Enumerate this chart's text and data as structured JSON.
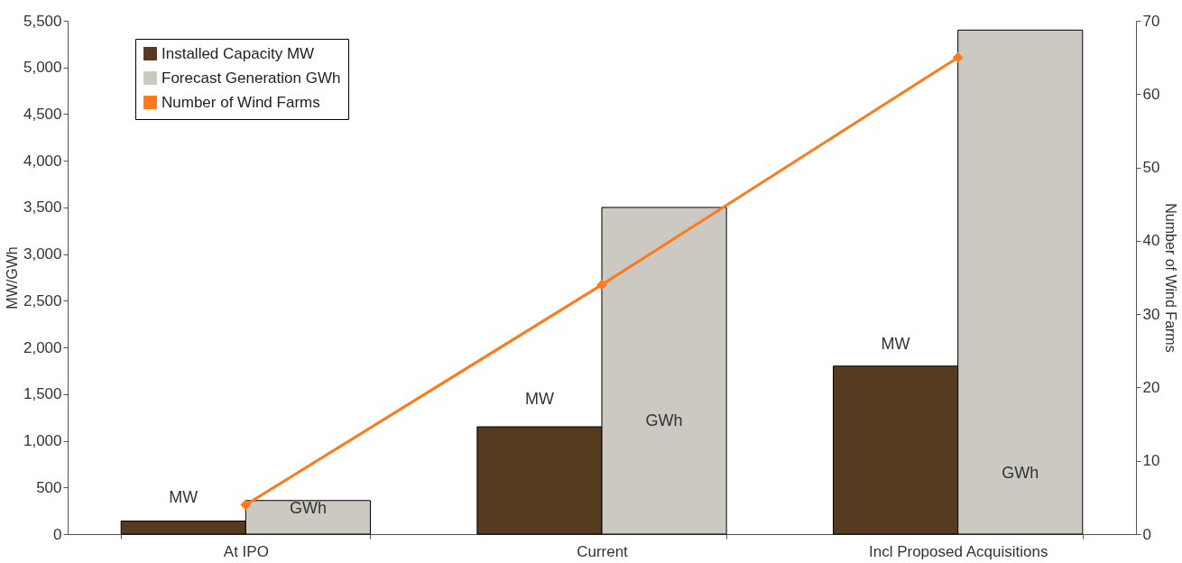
{
  "chart_data": {
    "type": "bar",
    "categories": [
      "At IPO",
      "Current",
      "Incl Proposed Acquisitions"
    ],
    "series": [
      {
        "name": "Installed Capacity MW",
        "color": "#553b1f",
        "values": [
          140,
          1150,
          1800
        ]
      },
      {
        "name": "Forecast Generation GWh",
        "color": "#ccc8c2",
        "values": [
          360,
          3500,
          5400
        ]
      },
      {
        "name": "Number of Wind Farms",
        "type": "line",
        "axis": "y2",
        "color": "#ff7a1a",
        "marker": "diamond",
        "values": [
          4,
          34,
          65
        ]
      }
    ],
    "ylabel": "MW/GWh",
    "y2label": "Number of Wind Farms",
    "ylim": [
      0,
      5500
    ],
    "yticks": [
      {
        "value": 0,
        "label": "0"
      },
      {
        "value": 500,
        "label": "500"
      },
      {
        "value": 1000,
        "label": "1,000"
      },
      {
        "value": 1500,
        "label": "1,500"
      },
      {
        "value": 2000,
        "label": "2,000"
      },
      {
        "value": 2500,
        "label": "2,500"
      },
      {
        "value": 3000,
        "label": "3,000"
      },
      {
        "value": 3500,
        "label": "3,500"
      },
      {
        "value": 4000,
        "label": "4,000"
      },
      {
        "value": 4500,
        "label": "4,500"
      },
      {
        "value": 5000,
        "label": "5,000"
      },
      {
        "value": 5500,
        "label": "5,500"
      }
    ],
    "y2lim": [
      0,
      70
    ],
    "y2ticks": [
      0,
      10,
      20,
      30,
      40,
      50,
      60,
      70
    ],
    "annotations": [
      {
        "text": "MW",
        "x": "At IPO",
        "y": 390
      },
      {
        "text": "GWh",
        "x": "At IPO",
        "y": 275
      },
      {
        "text": "MW",
        "x": "Current",
        "y": 1440
      },
      {
        "text": "GWh",
        "x": "Current",
        "y": 1205
      },
      {
        "text": "MW",
        "x": "Incl Proposed Acquisitions",
        "y": 2030
      },
      {
        "text": "GWh",
        "x": "Incl Proposed Acquisitions",
        "y": 645
      }
    ],
    "legend": "top left"
  }
}
